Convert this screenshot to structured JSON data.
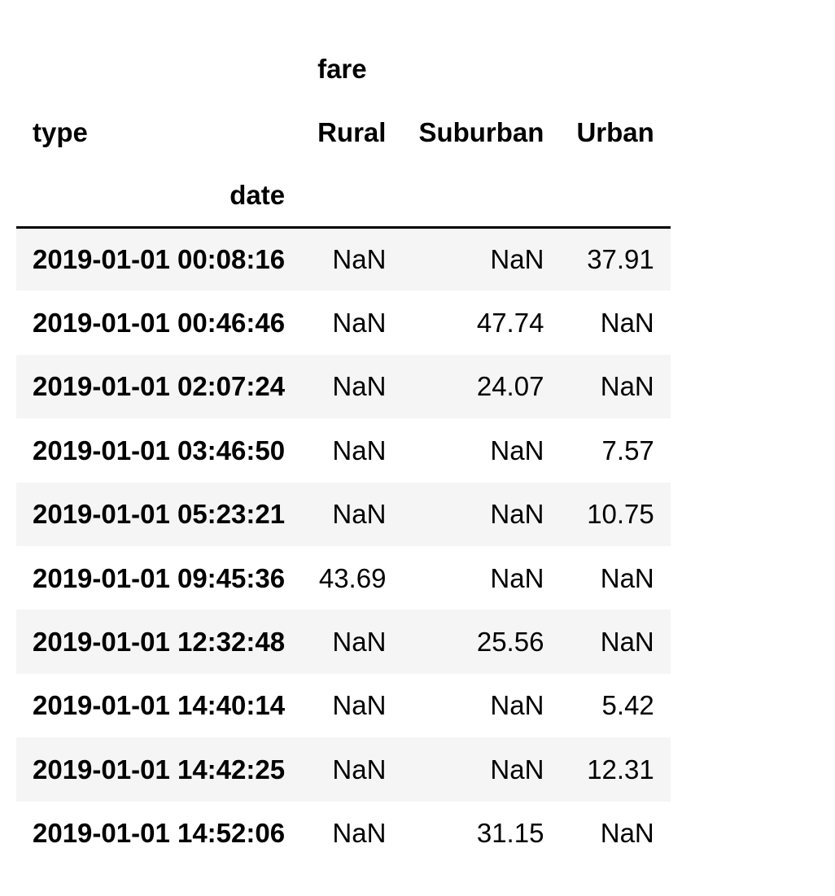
{
  "table": {
    "column_level0": "fare",
    "columns_name": "type",
    "index_name": "date",
    "columns": [
      "Rural",
      "Suburban",
      "Urban"
    ],
    "rows": [
      {
        "index": "2019-01-01 00:08:16",
        "values": [
          "NaN",
          "NaN",
          "37.91"
        ]
      },
      {
        "index": "2019-01-01 00:46:46",
        "values": [
          "NaN",
          "47.74",
          "NaN"
        ]
      },
      {
        "index": "2019-01-01 02:07:24",
        "values": [
          "NaN",
          "24.07",
          "NaN"
        ]
      },
      {
        "index": "2019-01-01 03:46:50",
        "values": [
          "NaN",
          "NaN",
          "7.57"
        ]
      },
      {
        "index": "2019-01-01 05:23:21",
        "values": [
          "NaN",
          "NaN",
          "10.75"
        ]
      },
      {
        "index": "2019-01-01 09:45:36",
        "values": [
          "43.69",
          "NaN",
          "NaN"
        ]
      },
      {
        "index": "2019-01-01 12:32:48",
        "values": [
          "NaN",
          "25.56",
          "NaN"
        ]
      },
      {
        "index": "2019-01-01 14:40:14",
        "values": [
          "NaN",
          "NaN",
          "5.42"
        ]
      },
      {
        "index": "2019-01-01 14:42:25",
        "values": [
          "NaN",
          "NaN",
          "12.31"
        ]
      },
      {
        "index": "2019-01-01 14:52:06",
        "values": [
          "NaN",
          "31.15",
          "NaN"
        ]
      }
    ]
  }
}
